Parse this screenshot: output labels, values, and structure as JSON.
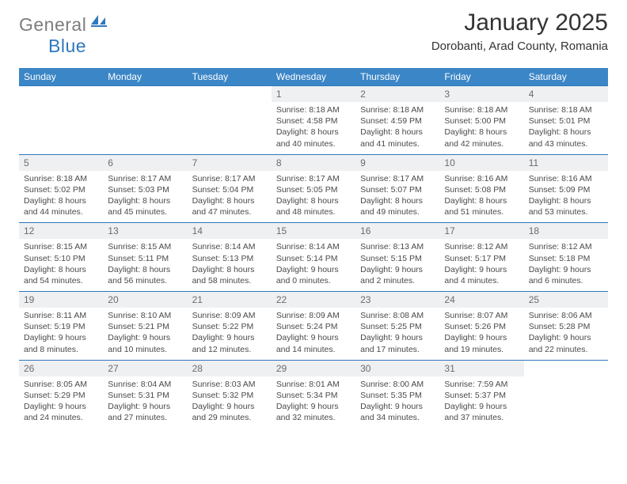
{
  "logo": {
    "text1": "General",
    "text2": "Blue"
  },
  "title": "January 2025",
  "location": "Dorobanti, Arad County, Romania",
  "colors": {
    "header_bg": "#3b86c6",
    "header_text": "#ffffff",
    "daynum_bg": "#eef0f2",
    "daynum_text": "#6b6b6b",
    "border": "#2f78bd",
    "body_text": "#4a4a4a",
    "logo_gray": "#7d7d7d",
    "logo_blue": "#2f78bd"
  },
  "weekdays": [
    "Sunday",
    "Monday",
    "Tuesday",
    "Wednesday",
    "Thursday",
    "Friday",
    "Saturday"
  ],
  "weeks": [
    [
      null,
      null,
      null,
      {
        "n": "1",
        "sr": "8:18 AM",
        "ss": "4:58 PM",
        "dh": "8",
        "dm": "40"
      },
      {
        "n": "2",
        "sr": "8:18 AM",
        "ss": "4:59 PM",
        "dh": "8",
        "dm": "41"
      },
      {
        "n": "3",
        "sr": "8:18 AM",
        "ss": "5:00 PM",
        "dh": "8",
        "dm": "42"
      },
      {
        "n": "4",
        "sr": "8:18 AM",
        "ss": "5:01 PM",
        "dh": "8",
        "dm": "43"
      }
    ],
    [
      {
        "n": "5",
        "sr": "8:18 AM",
        "ss": "5:02 PM",
        "dh": "8",
        "dm": "44"
      },
      {
        "n": "6",
        "sr": "8:17 AM",
        "ss": "5:03 PM",
        "dh": "8",
        "dm": "45"
      },
      {
        "n": "7",
        "sr": "8:17 AM",
        "ss": "5:04 PM",
        "dh": "8",
        "dm": "47"
      },
      {
        "n": "8",
        "sr": "8:17 AM",
        "ss": "5:05 PM",
        "dh": "8",
        "dm": "48"
      },
      {
        "n": "9",
        "sr": "8:17 AM",
        "ss": "5:07 PM",
        "dh": "8",
        "dm": "49"
      },
      {
        "n": "10",
        "sr": "8:16 AM",
        "ss": "5:08 PM",
        "dh": "8",
        "dm": "51"
      },
      {
        "n": "11",
        "sr": "8:16 AM",
        "ss": "5:09 PM",
        "dh": "8",
        "dm": "53"
      }
    ],
    [
      {
        "n": "12",
        "sr": "8:15 AM",
        "ss": "5:10 PM",
        "dh": "8",
        "dm": "54"
      },
      {
        "n": "13",
        "sr": "8:15 AM",
        "ss": "5:11 PM",
        "dh": "8",
        "dm": "56"
      },
      {
        "n": "14",
        "sr": "8:14 AM",
        "ss": "5:13 PM",
        "dh": "8",
        "dm": "58"
      },
      {
        "n": "15",
        "sr": "8:14 AM",
        "ss": "5:14 PM",
        "dh": "9",
        "dm": "0"
      },
      {
        "n": "16",
        "sr": "8:13 AM",
        "ss": "5:15 PM",
        "dh": "9",
        "dm": "2"
      },
      {
        "n": "17",
        "sr": "8:12 AM",
        "ss": "5:17 PM",
        "dh": "9",
        "dm": "4"
      },
      {
        "n": "18",
        "sr": "8:12 AM",
        "ss": "5:18 PM",
        "dh": "9",
        "dm": "6"
      }
    ],
    [
      {
        "n": "19",
        "sr": "8:11 AM",
        "ss": "5:19 PM",
        "dh": "9",
        "dm": "8"
      },
      {
        "n": "20",
        "sr": "8:10 AM",
        "ss": "5:21 PM",
        "dh": "9",
        "dm": "10"
      },
      {
        "n": "21",
        "sr": "8:09 AM",
        "ss": "5:22 PM",
        "dh": "9",
        "dm": "12"
      },
      {
        "n": "22",
        "sr": "8:09 AM",
        "ss": "5:24 PM",
        "dh": "9",
        "dm": "14"
      },
      {
        "n": "23",
        "sr": "8:08 AM",
        "ss": "5:25 PM",
        "dh": "9",
        "dm": "17"
      },
      {
        "n": "24",
        "sr": "8:07 AM",
        "ss": "5:26 PM",
        "dh": "9",
        "dm": "19"
      },
      {
        "n": "25",
        "sr": "8:06 AM",
        "ss": "5:28 PM",
        "dh": "9",
        "dm": "22"
      }
    ],
    [
      {
        "n": "26",
        "sr": "8:05 AM",
        "ss": "5:29 PM",
        "dh": "9",
        "dm": "24"
      },
      {
        "n": "27",
        "sr": "8:04 AM",
        "ss": "5:31 PM",
        "dh": "9",
        "dm": "27"
      },
      {
        "n": "28",
        "sr": "8:03 AM",
        "ss": "5:32 PM",
        "dh": "9",
        "dm": "29"
      },
      {
        "n": "29",
        "sr": "8:01 AM",
        "ss": "5:34 PM",
        "dh": "9",
        "dm": "32"
      },
      {
        "n": "30",
        "sr": "8:00 AM",
        "ss": "5:35 PM",
        "dh": "9",
        "dm": "34"
      },
      {
        "n": "31",
        "sr": "7:59 AM",
        "ss": "5:37 PM",
        "dh": "9",
        "dm": "37"
      },
      null
    ]
  ]
}
